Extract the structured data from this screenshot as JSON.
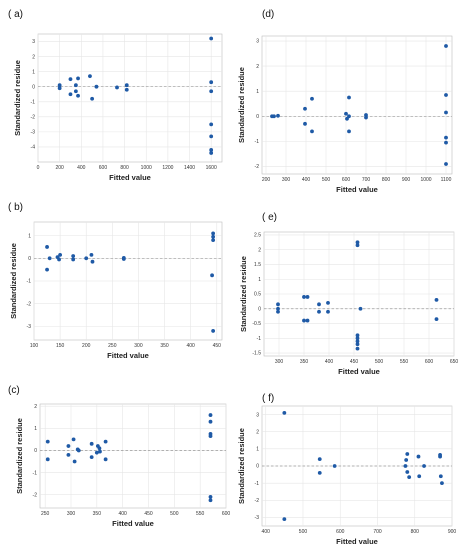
{
  "chart_data": [
    {
      "type": "scatter",
      "panel": "( a)",
      "xlabel": "Fitted value",
      "ylabel": "Standardized residue",
      "xlim": [
        0,
        1700
      ],
      "ylim": [
        -5,
        3.5
      ],
      "xticks": [
        0,
        200,
        400,
        600,
        800,
        1000,
        1200,
        1400,
        1600
      ],
      "yticks": [
        -4,
        -3,
        -2,
        -1,
        0,
        1,
        2,
        3
      ],
      "grid": true,
      "reference_y": 0,
      "color": "#1f5aa6",
      "points": [
        {
          "x": 200,
          "y": 0.1
        },
        {
          "x": 200,
          "y": -0.1
        },
        {
          "x": 300,
          "y": 0.5
        },
        {
          "x": 300,
          "y": -0.5
        },
        {
          "x": 350,
          "y": -0.3
        },
        {
          "x": 350,
          "y": 0.1
        },
        {
          "x": 370,
          "y": 0.55
        },
        {
          "x": 370,
          "y": -0.6
        },
        {
          "x": 480,
          "y": 0.7
        },
        {
          "x": 500,
          "y": -0.8
        },
        {
          "x": 540,
          "y": 0
        },
        {
          "x": 730,
          "y": -0.05
        },
        {
          "x": 820,
          "y": 0.1
        },
        {
          "x": 820,
          "y": -0.2
        },
        {
          "x": 1600,
          "y": 3.2
        },
        {
          "x": 1600,
          "y": 0.3
        },
        {
          "x": 1600,
          "y": -0.3
        },
        {
          "x": 1600,
          "y": -2.5
        },
        {
          "x": 1600,
          "y": -3.3
        },
        {
          "x": 1600,
          "y": -4.2
        },
        {
          "x": 1600,
          "y": -4.4
        }
      ]
    },
    {
      "type": "scatter",
      "panel": "(d)",
      "xlabel": "Fitted value",
      "ylabel": "Standardized residue",
      "xlim": [
        180,
        1130
      ],
      "ylim": [
        -2.3,
        3.2
      ],
      "xticks": [
        200,
        300,
        400,
        500,
        600,
        700,
        800,
        900,
        1000,
        1100
      ],
      "yticks": [
        -2,
        -1,
        0,
        1,
        2,
        3
      ],
      "grid": true,
      "reference_y": 0,
      "color": "#1f5aa6",
      "points": [
        {
          "x": 230,
          "y": 0
        },
        {
          "x": 240,
          "y": 0
        },
        {
          "x": 260,
          "y": 0.02
        },
        {
          "x": 395,
          "y": 0.3
        },
        {
          "x": 395,
          "y": -0.3
        },
        {
          "x": 430,
          "y": 0.7
        },
        {
          "x": 430,
          "y": -0.6
        },
        {
          "x": 600,
          "y": 0.1
        },
        {
          "x": 605,
          "y": -0.1
        },
        {
          "x": 615,
          "y": 0.75
        },
        {
          "x": 615,
          "y": 0
        },
        {
          "x": 615,
          "y": -0.6
        },
        {
          "x": 700,
          "y": 0.05
        },
        {
          "x": 700,
          "y": -0.05
        },
        {
          "x": 1100,
          "y": 2.8
        },
        {
          "x": 1100,
          "y": 0.85
        },
        {
          "x": 1100,
          "y": 0.15
        },
        {
          "x": 1100,
          "y": -0.85
        },
        {
          "x": 1100,
          "y": -1.05
        },
        {
          "x": 1100,
          "y": -1.9
        }
      ]
    },
    {
      "type": "scatter",
      "panel": "( b)",
      "xlabel": "Fitted value",
      "ylabel": "Standardized residue",
      "xlim": [
        100,
        460
      ],
      "ylim": [
        -3.6,
        1.6
      ],
      "xticks": [
        100,
        150,
        200,
        250,
        300,
        350,
        400,
        450
      ],
      "yticks": [
        -3,
        -2,
        -1,
        0,
        1
      ],
      "grid": true,
      "reference_y": 0,
      "color": "#1f5aa6",
      "points": [
        {
          "x": 125,
          "y": 0.5
        },
        {
          "x": 125,
          "y": -0.5
        },
        {
          "x": 130,
          "y": 0
        },
        {
          "x": 145,
          "y": 0.05
        },
        {
          "x": 148,
          "y": -0.05
        },
        {
          "x": 150,
          "y": 0.15
        },
        {
          "x": 175,
          "y": 0.1
        },
        {
          "x": 175,
          "y": -0.05
        },
        {
          "x": 200,
          "y": 0
        },
        {
          "x": 210,
          "y": 0.15
        },
        {
          "x": 212,
          "y": -0.15
        },
        {
          "x": 272,
          "y": 0.02
        },
        {
          "x": 272,
          "y": -0.03
        },
        {
          "x": 443,
          "y": 1.1
        },
        {
          "x": 443,
          "y": 0.95
        },
        {
          "x": 443,
          "y": 0.8
        },
        {
          "x": 441,
          "y": -0.75
        },
        {
          "x": 443,
          "y": -3.2
        }
      ]
    },
    {
      "type": "scatter",
      "panel": "( e)",
      "xlabel": "Fitted value",
      "ylabel": "Standardized residue",
      "xlim": [
        270,
        650
      ],
      "ylim": [
        -1.6,
        2.6
      ],
      "xticks": [
        300,
        350,
        400,
        450,
        500,
        550,
        600,
        650
      ],
      "yticks": [
        -1.5,
        -1.0,
        -0.5,
        0.0,
        0.5,
        1.0,
        1.5,
        2.0,
        2.5
      ],
      "grid": true,
      "reference_y": 0,
      "color": "#1f5aa6",
      "points": [
        {
          "x": 298,
          "y": 0.15
        },
        {
          "x": 298,
          "y": 0
        },
        {
          "x": 298,
          "y": -0.1
        },
        {
          "x": 350,
          "y": 0.4
        },
        {
          "x": 357,
          "y": 0.4
        },
        {
          "x": 350,
          "y": -0.4
        },
        {
          "x": 357,
          "y": -0.4
        },
        {
          "x": 380,
          "y": 0.15
        },
        {
          "x": 380,
          "y": -0.1
        },
        {
          "x": 398,
          "y": 0.2
        },
        {
          "x": 398,
          "y": -0.1
        },
        {
          "x": 457,
          "y": 2.25
        },
        {
          "x": 457,
          "y": 2.15
        },
        {
          "x": 457,
          "y": -0.9
        },
        {
          "x": 457,
          "y": -1.0
        },
        {
          "x": 457,
          "y": -1.1
        },
        {
          "x": 457,
          "y": -1.2
        },
        {
          "x": 457,
          "y": -1.35
        },
        {
          "x": 463,
          "y": 0
        },
        {
          "x": 615,
          "y": 0.3
        },
        {
          "x": 615,
          "y": -0.35
        }
      ]
    },
    {
      "type": "scatter",
      "panel": "(c)",
      "xlabel": "Fitted value",
      "ylabel": "Standardized residue",
      "xlim": [
        240,
        600
      ],
      "ylim": [
        -2.6,
        2.1
      ],
      "xticks": [
        250,
        300,
        350,
        400,
        450,
        500,
        550,
        600
      ],
      "yticks": [
        -2,
        -1,
        0,
        1,
        2
      ],
      "grid": true,
      "reference_y": 0,
      "color": "#1f5aa6",
      "points": [
        {
          "x": 255,
          "y": 0.4
        },
        {
          "x": 255,
          "y": -0.4
        },
        {
          "x": 295,
          "y": 0.2
        },
        {
          "x": 295,
          "y": -0.2
        },
        {
          "x": 305,
          "y": 0.5
        },
        {
          "x": 307,
          "y": -0.5
        },
        {
          "x": 313,
          "y": 0.05
        },
        {
          "x": 315,
          "y": 0
        },
        {
          "x": 340,
          "y": 0.3
        },
        {
          "x": 340,
          "y": -0.3
        },
        {
          "x": 350,
          "y": -0.1
        },
        {
          "x": 352,
          "y": 0.2
        },
        {
          "x": 355,
          "y": 0.1
        },
        {
          "x": 356,
          "y": -0.05
        },
        {
          "x": 367,
          "y": 0.4
        },
        {
          "x": 367,
          "y": -0.4
        },
        {
          "x": 570,
          "y": 1.6
        },
        {
          "x": 570,
          "y": 1.3
        },
        {
          "x": 570,
          "y": 0.75
        },
        {
          "x": 570,
          "y": 0.65
        },
        {
          "x": 570,
          "y": -2.1
        },
        {
          "x": 570,
          "y": -2.25
        }
      ]
    },
    {
      "type": "scatter",
      "panel": "( f)",
      "xlabel": "Fitted value",
      "ylabel": "Standardized residue",
      "xlim": [
        390,
        900
      ],
      "ylim": [
        -3.5,
        3.5
      ],
      "xticks": [
        400,
        500,
        600,
        700,
        800,
        900
      ],
      "yticks": [
        -3,
        -2,
        -1,
        0,
        1,
        2,
        3
      ],
      "grid": true,
      "reference_y": 0,
      "color": "#1f5aa6",
      "points": [
        {
          "x": 450,
          "y": 3.1
        },
        {
          "x": 450,
          "y": -3.1
        },
        {
          "x": 545,
          "y": 0.4
        },
        {
          "x": 545,
          "y": -0.4
        },
        {
          "x": 585,
          "y": 0
        },
        {
          "x": 775,
          "y": 0
        },
        {
          "x": 777,
          "y": 0.35
        },
        {
          "x": 780,
          "y": -0.35
        },
        {
          "x": 780,
          "y": 0.7
        },
        {
          "x": 785,
          "y": -0.65
        },
        {
          "x": 810,
          "y": 0.55
        },
        {
          "x": 812,
          "y": -0.6
        },
        {
          "x": 825,
          "y": 0
        },
        {
          "x": 868,
          "y": 0.65
        },
        {
          "x": 868,
          "y": 0.55
        },
        {
          "x": 870,
          "y": -0.6
        },
        {
          "x": 873,
          "y": -1.0
        }
      ]
    }
  ]
}
